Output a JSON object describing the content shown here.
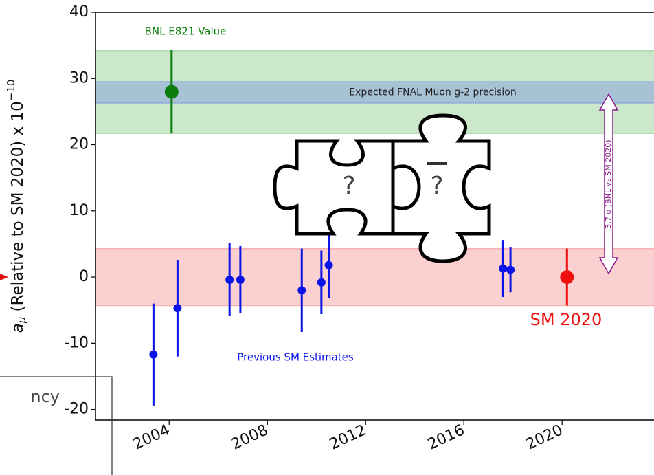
{
  "chart_data": {
    "type": "errorbar",
    "ylabel": {
      "symbol": "a",
      "subscript": "μ",
      "text": " (Relative to SM 2020) x 10",
      "exponent": "−10"
    },
    "xlim": [
      2001,
      2023.8
    ],
    "xticks": [
      2004,
      2008,
      2012,
      2016,
      2020
    ],
    "ylim": [
      -21.6,
      40
    ],
    "yticks": [
      40,
      30,
      20,
      10,
      0,
      -10,
      -20
    ],
    "bands": [
      {
        "lower": 21.7,
        "upper": 34.2,
        "color": "#a9d8a9"
      },
      {
        "lower": 26.3,
        "upper": 29.5,
        "color": "#8fa8dc",
        "label": "Expected FNAL Muon g-2 precision"
      },
      {
        "lower": -4.3,
        "upper": 4.3,
        "color": "#f7b0b0"
      }
    ],
    "series": [
      {
        "name": "Previous SM Estimates",
        "color": "#0a14e6",
        "x": [
          2003.36,
          2004.34,
          2006.46,
          2006.9,
          2009.4,
          2010.2,
          2010.5,
          2017.6,
          2017.9
        ],
        "values": [
          -11.7,
          -4.7,
          -0.4,
          -0.4,
          -2,
          -0.8,
          1.8,
          1.3,
          1.1
        ],
        "errors": [
          7.7,
          7.3,
          5.5,
          5.1,
          6.3,
          4.8,
          5,
          4.3,
          3.4
        ]
      },
      {
        "name": "BNL E821 Value",
        "color": "#0a7d0a",
        "x": [
          2004.1
        ],
        "values": [
          28
        ],
        "errors": [
          6.3
        ]
      },
      {
        "name": "SM 2020",
        "color": "#f01010",
        "x": [
          2020.2
        ],
        "values": [
          0
        ],
        "errors": [
          4.3
        ]
      }
    ],
    "arrow_label": "3.7 σ (BNL vs SM 2020)",
    "puzzle_labels": [
      "?",
      "?"
    ],
    "fragment_text": "ncy"
  }
}
